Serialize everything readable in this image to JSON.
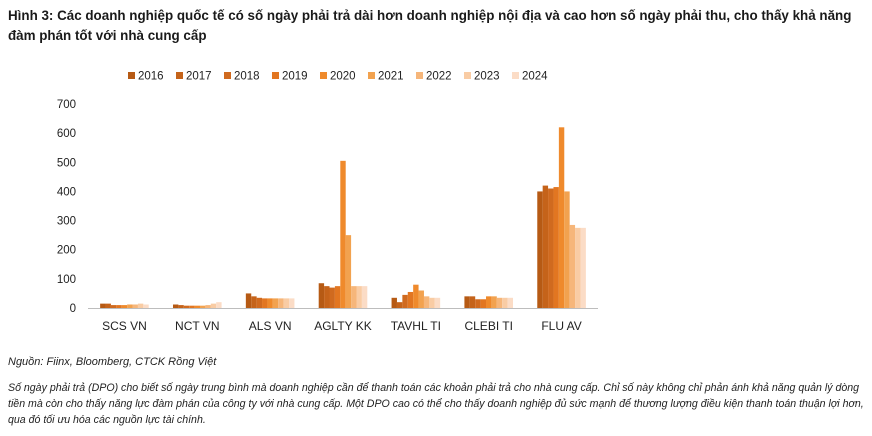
{
  "figure": {
    "title": "Hình 3: Các doanh nghiệp quốc tế có số ngày phải trả dài hơn doanh nghiệp nội địa và cao hơn số ngày phải thu, cho thấy khả năng đàm phán tốt với nhà cung cấp",
    "source": "Nguồn: Fiinx, Bloomberg, CTCK Rồng Việt",
    "note": "Số ngày phải trả (DPO) cho biết số ngày trung bình mà doanh nghiệp cần để thanh toán các khoản phải trả cho nhà cung cấp. Chỉ số này không chỉ phản ánh khả năng quản lý dòng tiền mà còn cho thấy năng lực đàm phán của công ty với nhà cung cấp. Một DPO cao có thể cho thấy doanh nghiệp đủ sức mạnh để thương lượng điều kiện thanh toán thuận lợi hơn, qua đó tối ưu hóa các nguồn lực tài chính."
  },
  "chart_data": {
    "type": "bar",
    "title": "",
    "xlabel": "",
    "ylabel": "",
    "ylim": [
      0,
      700
    ],
    "yticks": [
      0,
      100,
      200,
      300,
      400,
      500,
      600,
      700
    ],
    "grid": false,
    "legend_position": "top",
    "categories": [
      "SCS VN",
      "NCT VN",
      "ALS VN",
      "AGLTY KK",
      "TAVHL TI",
      "CLEBI TI",
      "FLU AV"
    ],
    "series": [
      {
        "name": "2016",
        "color": "#b65a14",
        "values": [
          15,
          12,
          50,
          85,
          35,
          40,
          400
        ]
      },
      {
        "name": "2017",
        "color": "#c5631a",
        "values": [
          15,
          10,
          40,
          75,
          20,
          40,
          420
        ]
      },
      {
        "name": "2018",
        "color": "#d06a1f",
        "values": [
          10,
          8,
          35,
          70,
          45,
          30,
          410
        ]
      },
      {
        "name": "2019",
        "color": "#e27621",
        "values": [
          10,
          8,
          33,
          75,
          55,
          30,
          415
        ]
      },
      {
        "name": "2020",
        "color": "#ef8a2c",
        "values": [
          10,
          8,
          33,
          505,
          80,
          40,
          620
        ]
      },
      {
        "name": "2021",
        "color": "#f2a24f",
        "values": [
          12,
          8,
          33,
          250,
          60,
          40,
          400
        ]
      },
      {
        "name": "2022",
        "color": "#f6b67a",
        "values": [
          12,
          10,
          33,
          75,
          40,
          35,
          285
        ]
      },
      {
        "name": "2023",
        "color": "#f9cca4",
        "values": [
          15,
          15,
          33,
          75,
          35,
          35,
          275
        ]
      },
      {
        "name": "2024",
        "color": "#fbdcc6",
        "values": [
          12,
          20,
          33,
          75,
          35,
          35,
          275
        ]
      }
    ]
  }
}
